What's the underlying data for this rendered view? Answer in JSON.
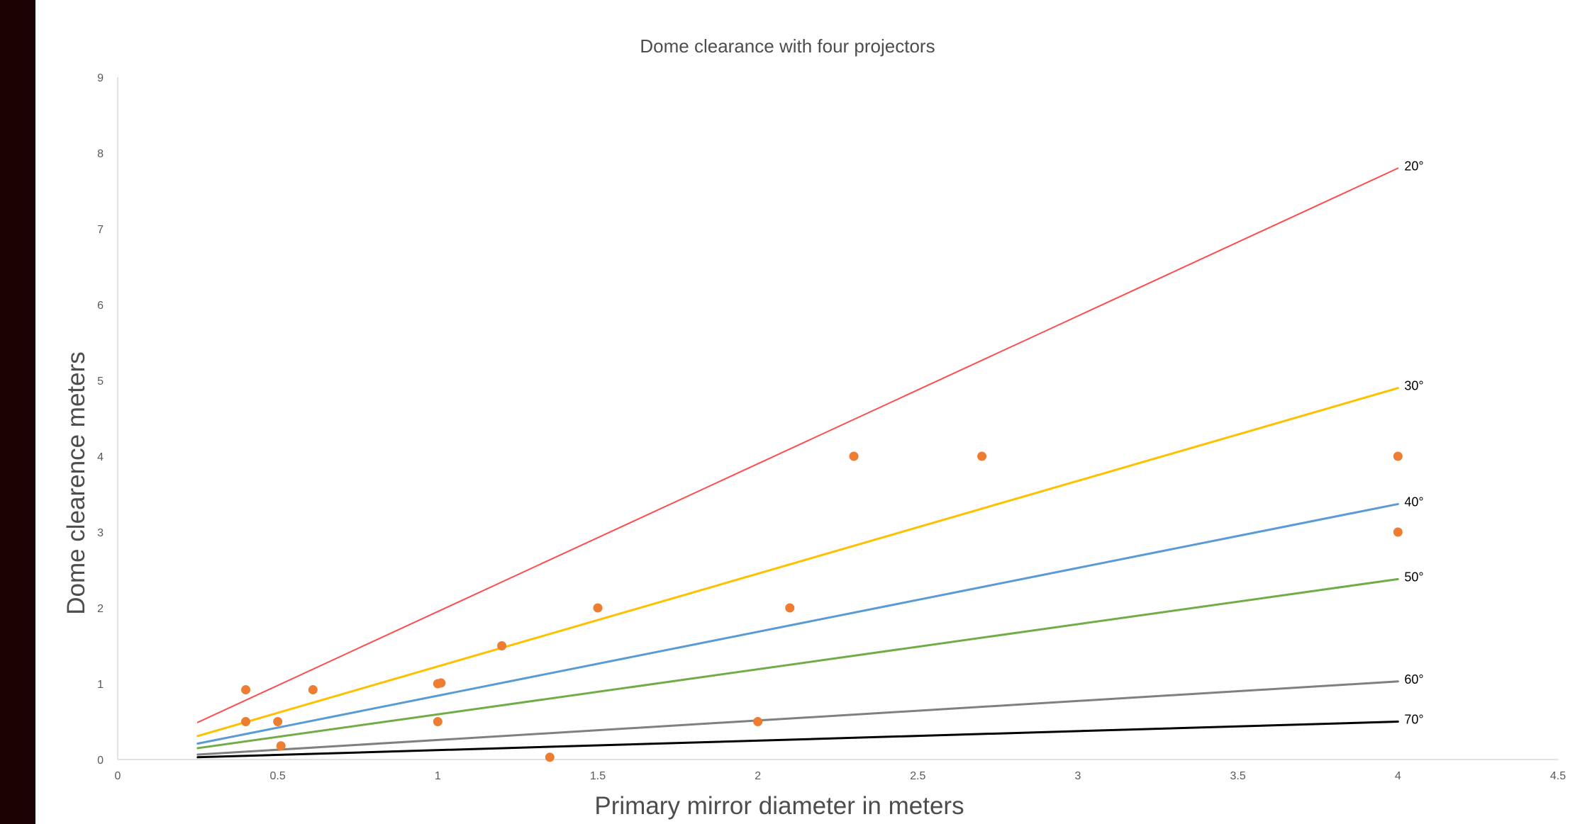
{
  "chart_data": {
    "type": "scatter",
    "title": "Dome clearance with four projectors",
    "xlabel": "Primary mirror diameter in meters",
    "ylabel": "Dome clearence meters",
    "xlim": [
      0,
      4.5
    ],
    "ylim": [
      0,
      9
    ],
    "x_ticks": [
      0,
      0.5,
      1,
      1.5,
      2,
      2.5,
      3,
      3.5,
      4,
      4.5
    ],
    "x_tick_labels": [
      "0",
      "0.5",
      "1",
      "1.5",
      "2",
      "2.5",
      "3",
      "3.5",
      "4",
      "4.5"
    ],
    "y_ticks": [
      0,
      1,
      2,
      3,
      4,
      5,
      6,
      7,
      8,
      9
    ],
    "y_tick_labels": [
      "0",
      "1",
      "2",
      "3",
      "4",
      "5",
      "6",
      "7",
      "8",
      "9"
    ],
    "grid": false,
    "lines": [
      {
        "label": "20°",
        "color": "#ff4d4d",
        "width": 2,
        "x": [
          0.25,
          4
        ],
        "y": [
          0.49,
          7.8
        ]
      },
      {
        "label": "30°",
        "color": "#ffc000",
        "width": 3,
        "x": [
          0.25,
          4
        ],
        "y": [
          0.31,
          4.9
        ]
      },
      {
        "label": "40°",
        "color": "#5b9bd5",
        "width": 3,
        "x": [
          0.25,
          4
        ],
        "y": [
          0.21,
          3.37
        ]
      },
      {
        "label": "50°",
        "color": "#70ad47",
        "width": 3,
        "x": [
          0.25,
          4
        ],
        "y": [
          0.15,
          2.38
        ]
      },
      {
        "label": "60°",
        "color": "#808080",
        "width": 3,
        "x": [
          0.25,
          4
        ],
        "y": [
          0.065,
          1.03
        ]
      },
      {
        "label": "70°",
        "color": "#000000",
        "width": 3,
        "x": [
          0.25,
          4
        ],
        "y": [
          0.03,
          0.5
        ]
      }
    ],
    "points": {
      "color": "#ed7d31",
      "x": [
        0.4,
        0.4,
        0.5,
        0.51,
        0.61,
        1.0,
        1.01,
        1.0,
        1.2,
        1.35,
        1.5,
        2.0,
        2.1,
        2.3,
        2.7,
        4.0,
        4.0
      ],
      "y": [
        0.92,
        0.5,
        0.5,
        0.18,
        0.92,
        1.0,
        1.01,
        0.5,
        1.5,
        0.03,
        2.0,
        0.5,
        2.0,
        4.0,
        4.0,
        4.0,
        3.0
      ]
    }
  }
}
